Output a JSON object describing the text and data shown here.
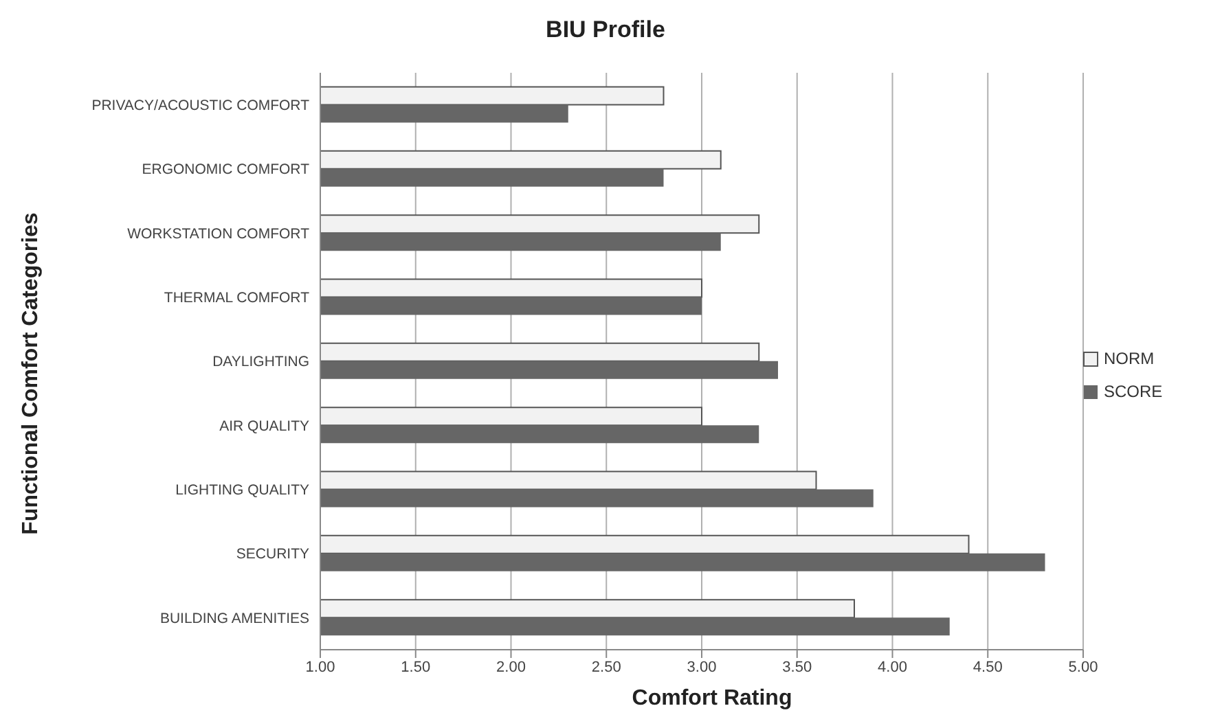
{
  "chart_data": {
    "type": "bar",
    "orientation": "horizontal",
    "title": "BIU Profile",
    "xlabel": "Comfort Rating",
    "ylabel": "Functional Comfort Categories",
    "categories": [
      "PRIVACY/ACOUSTIC COMFORT",
      "ERGONOMIC COMFORT",
      "WORKSTATION COMFORT",
      "THERMAL COMFORT",
      "DAYLIGHTING",
      "AIR QUALITY",
      "LIGHTING QUALITY",
      "SECURITY",
      "BUILDING AMENITIES"
    ],
    "series": [
      {
        "name": "NORM",
        "color": "#f2f2f2",
        "values": [
          2.8,
          3.1,
          3.3,
          3.0,
          3.3,
          3.0,
          3.6,
          4.4,
          3.8
        ]
      },
      {
        "name": "SCORE",
        "color": "#666666",
        "values": [
          2.3,
          2.8,
          3.1,
          3.0,
          3.4,
          3.3,
          3.9,
          4.8,
          4.3
        ]
      }
    ],
    "xlim": [
      1,
      5
    ],
    "xticks": [
      {
        "value": 1,
        "label": "1.00"
      },
      {
        "value": 1.5,
        "label": "1.50"
      },
      {
        "value": 2,
        "label": "2.00"
      },
      {
        "value": 2.5,
        "label": "2.50"
      },
      {
        "value": 3,
        "label": "3.00"
      },
      {
        "value": 3.5,
        "label": "3.50"
      },
      {
        "value": 4,
        "label": "4.00"
      },
      {
        "value": 4.5,
        "label": "4.50"
      },
      {
        "value": 5,
        "label": "5.00"
      }
    ],
    "grid": "x",
    "legend": "right"
  }
}
